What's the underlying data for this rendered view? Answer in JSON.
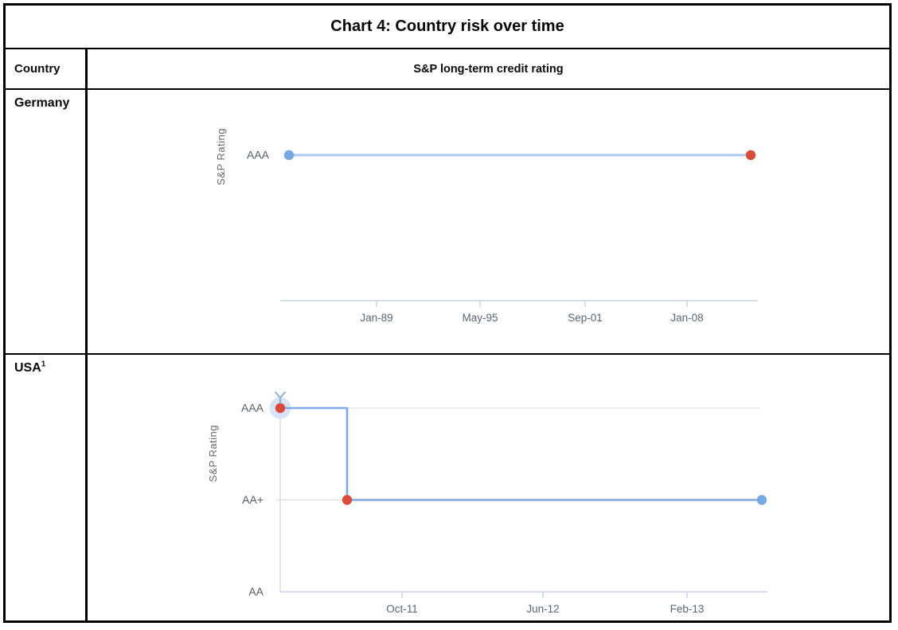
{
  "table": {
    "title": "Chart 4: Country risk over time",
    "header": {
      "country_col": "Country",
      "rating_col": "S&P long-term credit rating"
    },
    "rows": [
      {
        "country": "Germany",
        "superscript": ""
      },
      {
        "country": "USA",
        "superscript": "1"
      }
    ]
  },
  "colors": {
    "border": "#000000",
    "germany_line": "#abc7ef",
    "usa_line": "#7fa9e6",
    "dot_blue": "#74a9e2",
    "dot_red": "#d94b3a",
    "halo": "#d8e4f4",
    "marker": "#8fb0d8",
    "axis_line": "#c7d0e3",
    "grid_line": "#e0e0e0",
    "vertical_axis": "#d6d6d6",
    "tick_label": "#5a6575",
    "rating_label": "#555b63",
    "axis_title": "#65696f"
  },
  "chart_data": [
    {
      "type": "line",
      "country": "Germany",
      "title": "",
      "ylabel": "S&P Rating",
      "legend": "none",
      "grid": false,
      "line_color": "#abc7ef",
      "x_ticks": [
        {
          "label": "Jan-89",
          "t": 0.2017
        },
        {
          "label": "May-95",
          "t": 0.4183
        },
        {
          "label": "Sep-01",
          "t": 0.6383
        },
        {
          "label": "Jan-08",
          "t": 0.8517
        }
      ],
      "y_ticks": [
        {
          "label": "AAA",
          "level": 0
        }
      ],
      "series": [
        {
          "name": "S&P long-term credit rating",
          "points": [
            {
              "date": "Aug-83",
              "rating": "AAA",
              "t": 0.0183,
              "dot": "blue"
            },
            {
              "date": "Jan-12",
              "rating": "AAA",
              "t": 0.985,
              "dot": "red"
            }
          ]
        }
      ]
    },
    {
      "type": "line",
      "country": "USA",
      "title": "",
      "ylabel": "S&P Rating",
      "legend": "none",
      "grid": true,
      "line_color": "#7fa9e6",
      "x_ticks": [
        {
          "label": "Oct-11",
          "t": 0.2525
        },
        {
          "label": "Jun-12",
          "t": 0.5446
        },
        {
          "label": "Feb-13",
          "t": 0.8432
        }
      ],
      "y_ticks": [
        {
          "label": "AAA",
          "level": 0
        },
        {
          "label": "AA+",
          "level": 1
        },
        {
          "label": "AA",
          "level": 2
        }
      ],
      "series": [
        {
          "name": "S&P long-term credit rating",
          "points": [
            {
              "date": "Apr-11",
              "rating": "AAA",
              "t": 0.0,
              "dot": "red",
              "halo": true,
              "marker": "arrow"
            },
            {
              "date": "Aug-11",
              "rating": "AA+",
              "t": 0.1386,
              "dot": "red"
            },
            {
              "date": "Jun-13",
              "rating": "AA+",
              "t": 0.9983,
              "dot": "blue"
            }
          ]
        }
      ]
    }
  ]
}
